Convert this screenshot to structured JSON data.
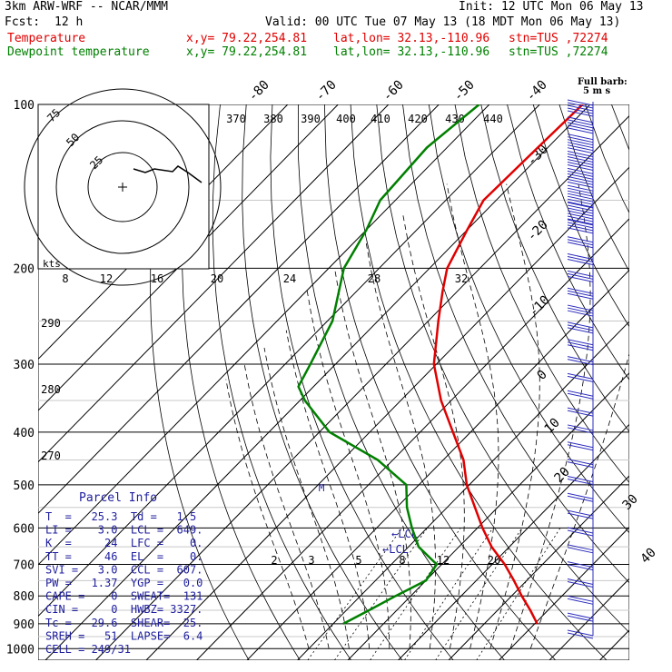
{
  "header": {
    "model": "3km ARW-WRF -- NCAR/MMM",
    "init": "Init: 12 UTC Mon 06 May 13",
    "fcst_label": "Fcst:",
    "fcst_value": "12 h",
    "valid": "Valid: 00 UTC Tue 07 May 13 (18 MDT Mon 06 May 13)",
    "temp_label": "Temperature",
    "dew_label": "Dewpoint temperature",
    "xy": "x,y= 79.22,254.81",
    "latlon": "lat,lon= 32.13,-110.96",
    "stn": "stn=TUS ,72274"
  },
  "barb_legend": {
    "line1": "Full barb:",
    "line2": "5 m s"
  },
  "colors": {
    "temperature": "#e00000",
    "dewpoint": "#008000",
    "grid": "#000000",
    "parcel_text": "#1e1e9e",
    "barbs": "#2b2bbd"
  },
  "chart_data": {
    "type": "line",
    "pressure_ticks": [
      "100",
      "200",
      "300",
      "400",
      "500",
      "600",
      "700",
      "800",
      "900",
      "1000"
    ],
    "isotherm_labels_left": [
      "-80",
      "-70",
      "-60",
      "-50",
      "-40"
    ],
    "isotherm_labels_right": [
      "-30",
      "-20",
      "-10",
      "0",
      "10",
      "20",
      "30",
      "40"
    ],
    "theta_labels": [
      "370",
      "380",
      "390",
      "400",
      "410",
      "420",
      "430",
      "440"
    ],
    "theta_labels_left": [
      "290",
      "280",
      "270"
    ],
    "hodograph": {
      "unit": "kts",
      "ring_labels": [
        "75",
        "50",
        "25"
      ]
    },
    "hodo_speed_labels": [
      "8",
      "12",
      "16",
      "20",
      "24",
      "28",
      "32"
    ],
    "mixing_ratio_labels": [
      "2",
      "3",
      "5",
      "8",
      "12",
      "20"
    ],
    "markers": {
      "lcl1": "LCL",
      "lcl2": "LCL",
      "m": "M"
    },
    "series": [
      {
        "name": "Temperature",
        "points": [
          [
            100,
            -61.5
          ],
          [
            120,
            -62
          ],
          [
            150,
            -62.5
          ],
          [
            170,
            -60
          ],
          [
            200,
            -56.5
          ],
          [
            220,
            -53
          ],
          [
            250,
            -48
          ],
          [
            300,
            -40.5
          ],
          [
            350,
            -32
          ],
          [
            400,
            -23.5
          ],
          [
            450,
            -16
          ],
          [
            500,
            -10.5
          ],
          [
            550,
            -4.5
          ],
          [
            600,
            1
          ],
          [
            650,
            6.5
          ],
          [
            700,
            12.5
          ],
          [
            750,
            17.5
          ],
          [
            800,
            22
          ],
          [
            850,
            26.5
          ],
          [
            900,
            30.5
          ]
        ]
      },
      {
        "name": "Dewpoint temperature",
        "points": [
          [
            100,
            -82
          ],
          [
            120,
            -84
          ],
          [
            150,
            -83
          ],
          [
            170,
            -80
          ],
          [
            200,
            -77
          ],
          [
            250,
            -69
          ],
          [
            300,
            -65
          ],
          [
            330,
            -63
          ],
          [
            350,
            -59
          ],
          [
            400,
            -48
          ],
          [
            450,
            -33
          ],
          [
            500,
            -22.5
          ],
          [
            550,
            -18
          ],
          [
            600,
            -13
          ],
          [
            650,
            -8
          ],
          [
            700,
            -1
          ],
          [
            750,
            0
          ],
          [
            800,
            -3
          ],
          [
            850,
            -5.5
          ],
          [
            900,
            -8
          ]
        ]
      }
    ],
    "wind_barbs_mps": [
      25,
      25,
      30,
      30,
      30,
      35,
      35,
      20,
      15,
      15,
      15,
      15,
      15,
      15,
      15,
      10,
      10,
      10,
      10,
      10,
      10,
      10,
      10,
      10,
      10,
      10,
      10,
      10,
      10,
      10,
      10,
      10
    ]
  },
  "parcel_info": {
    "title": "Parcel Info",
    "lines": [
      "T  =   25.3  Td =   1.5",
      "LI =    3.0  LCL =  649.",
      "K  =     24  LFC =    0.",
      "TT =     46  EL  =    0.",
      "SVI =   3.0  CCL =  607.",
      "PW =   1.37  YGP =   0.0",
      "CAPE =    0  SWEAT=  131",
      "CIN =     0  HWBZ= 3327.",
      "Tc =   29.6  SHEAR=  25.",
      "SREH =   51  LAPSE=  6.4",
      "CELL = 249/31"
    ]
  }
}
